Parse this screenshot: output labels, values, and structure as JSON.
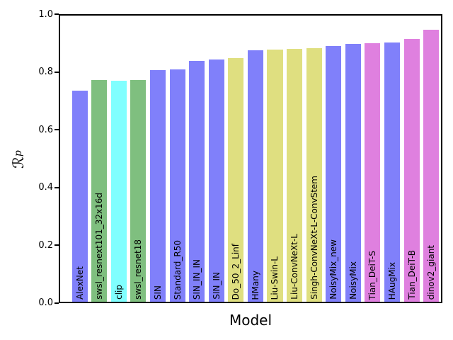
{
  "chart_data": {
    "type": "bar",
    "title": "",
    "xlabel": "Model",
    "ylabel": "R_p",
    "ylabel_display": {
      "symbol": "ℛ",
      "subscript": "p"
    },
    "ylim": [
      0.0,
      1.0
    ],
    "yticks": [
      0.0,
      0.2,
      0.4,
      0.6,
      0.8,
      1.0
    ],
    "ytick_labels": [
      "0.0",
      "0.2",
      "0.4",
      "0.6",
      "0.8",
      "1.0"
    ],
    "grid": false,
    "legend": false,
    "bar_label_position": "inside-bottom-rotated-90",
    "categories": [
      "AlexNet",
      "swsl_resnext101_32x16d",
      "clip",
      "swsl_resnet18",
      "SIN",
      "Standard_R50",
      "SIN_IN_IN",
      "SIN_IN",
      "Do_50_2_Linf",
      "HMany",
      "Liu-Swin-L",
      "Liu-ConvNeXt-L",
      "Singh-ConvNeXt-L-ConvStem",
      "NoisyMix_new",
      "NoisyMix",
      "Tian_DeiT-S",
      "HAugMix",
      "Tian_DeiT-B",
      "dinov2_giant"
    ],
    "values": [
      0.731,
      0.767,
      0.766,
      0.769,
      0.802,
      0.806,
      0.834,
      0.84,
      0.843,
      0.871,
      0.873,
      0.876,
      0.879,
      0.887,
      0.893,
      0.895,
      0.899,
      0.91,
      0.943
    ],
    "bar_colors": [
      "#8080fa",
      "#7fbf7f",
      "#80ffff",
      "#7fbf7f",
      "#8080fa",
      "#8080fa",
      "#8080fa",
      "#8080fa",
      "#dfdf80",
      "#8080fa",
      "#dfdf80",
      "#dfdf80",
      "#dfdf80",
      "#8080fa",
      "#8080fa",
      "#df80df",
      "#8080fa",
      "#df80df",
      "#df80df"
    ],
    "colors": {
      "axis": "#000000",
      "background": "#ffffff",
      "bar_palette": {
        "blue": "#8080fa",
        "green": "#7fbf7f",
        "cyan": "#80ffff",
        "yellow": "#dfdf80",
        "magenta": "#df80df"
      }
    }
  }
}
